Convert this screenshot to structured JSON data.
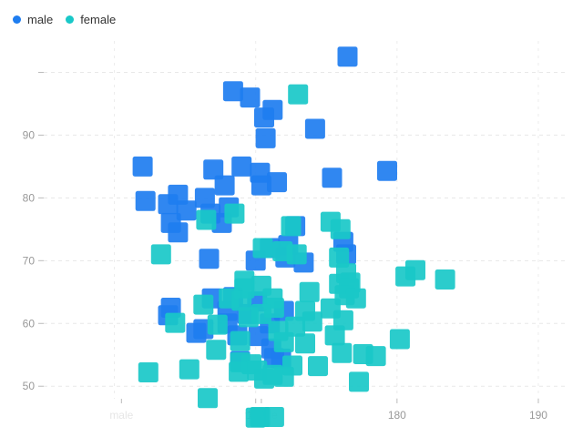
{
  "chart_data": {
    "type": "scatter",
    "title": "",
    "xlabel": "",
    "ylabel": "",
    "x_ticks": [
      170,
      180,
      190
    ],
    "x_ghost_labels": [
      "male",
      "female"
    ],
    "y_ticks": [
      50,
      60,
      70,
      80,
      90
    ],
    "xlim": [
      155,
      192
    ],
    "ylim": [
      48,
      105
    ],
    "grid": true,
    "legend_position": "top-left",
    "series": [
      {
        "name": "male",
        "color": "#1e7df0",
        "points": [
          [
            176.5,
            102.5
          ],
          [
            168.4,
            97
          ],
          [
            169.6,
            96
          ],
          [
            171.2,
            94
          ],
          [
            170.6,
            92.8
          ],
          [
            174.2,
            91
          ],
          [
            170.7,
            89.5
          ],
          [
            162.0,
            85
          ],
          [
            167.0,
            84.5
          ],
          [
            169.0,
            85
          ],
          [
            170.3,
            84
          ],
          [
            175.4,
            83.2
          ],
          [
            179.3,
            84.3
          ],
          [
            171.5,
            82.5
          ],
          [
            170.4,
            82
          ],
          [
            167.8,
            82
          ],
          [
            164.5,
            80.5
          ],
          [
            166.4,
            80
          ],
          [
            162.2,
            79.5
          ],
          [
            163.8,
            79
          ],
          [
            165.1,
            78
          ],
          [
            168.1,
            78.5
          ],
          [
            166.8,
            77.5
          ],
          [
            167.6,
            76
          ],
          [
            164.0,
            76
          ],
          [
            164.5,
            74.5
          ],
          [
            172.8,
            75.5
          ],
          [
            176.2,
            73
          ],
          [
            172.3,
            72.5
          ],
          [
            170.0,
            70
          ],
          [
            172.1,
            70.5
          ],
          [
            171.0,
            72
          ],
          [
            166.7,
            70.3
          ],
          [
            176.4,
            71
          ],
          [
            173.4,
            69.7
          ],
          [
            166.9,
            64
          ],
          [
            168.4,
            64.2
          ],
          [
            170.1,
            63.5
          ],
          [
            168.0,
            62
          ],
          [
            169.4,
            61.5
          ],
          [
            172.0,
            62
          ],
          [
            164.0,
            62.5
          ],
          [
            163.8,
            61.3
          ],
          [
            171.0,
            60
          ],
          [
            168.0,
            60
          ],
          [
            170.2,
            58
          ],
          [
            165.8,
            58.5
          ],
          [
            171.1,
            56
          ],
          [
            171.3,
            54.5
          ],
          [
            168.9,
            54
          ],
          [
            171.8,
            54.4
          ],
          [
            166.3,
            59.1
          ],
          [
            168.7,
            58.1
          ]
        ]
      },
      {
        "name": "female",
        "color": "#19c8c8",
        "points": [
          [
            173.0,
            96.5
          ],
          [
            166.5,
            76.5
          ],
          [
            168.5,
            77.5
          ],
          [
            172.5,
            75.5
          ],
          [
            175.3,
            76.2
          ],
          [
            176.0,
            75
          ],
          [
            163.3,
            71
          ],
          [
            170.5,
            72
          ],
          [
            172.9,
            71
          ],
          [
            171.9,
            71.5
          ],
          [
            175.9,
            70.5
          ],
          [
            176.4,
            68
          ],
          [
            181.3,
            68.5
          ],
          [
            183.4,
            67
          ],
          [
            180.6,
            67.5
          ],
          [
            176.7,
            66.5
          ],
          [
            175.9,
            66.3
          ],
          [
            176.6,
            65.6
          ],
          [
            170.4,
            66
          ],
          [
            169.2,
            66.8
          ],
          [
            173.8,
            65
          ],
          [
            169.2,
            65.6
          ],
          [
            176.3,
            64.5
          ],
          [
            177.1,
            64
          ],
          [
            168.1,
            64
          ],
          [
            171.2,
            64
          ],
          [
            166.3,
            63
          ],
          [
            171.3,
            62.5
          ],
          [
            173.5,
            62
          ],
          [
            175.3,
            62.4
          ],
          [
            169.0,
            63.6
          ],
          [
            170.4,
            61.5
          ],
          [
            169.5,
            61
          ],
          [
            176.2,
            60.5
          ],
          [
            174.0,
            60.3
          ],
          [
            172.8,
            59.5
          ],
          [
            167.3,
            59.8
          ],
          [
            171.6,
            58.8
          ],
          [
            175.6,
            58.1
          ],
          [
            168.9,
            57.2
          ],
          [
            180.2,
            57.5
          ],
          [
            172.0,
            57
          ],
          [
            173.5,
            56.8
          ],
          [
            176.1,
            55.3
          ],
          [
            177.6,
            55.1
          ],
          [
            178.5,
            54.8
          ],
          [
            167.2,
            55.8
          ],
          [
            165.3,
            52.7
          ],
          [
            168.9,
            53.8
          ],
          [
            169.7,
            53.5
          ],
          [
            172.6,
            53.3
          ],
          [
            174.4,
            53.2
          ],
          [
            168.8,
            52.3
          ],
          [
            170.1,
            52.5
          ],
          [
            172.0,
            51.5
          ],
          [
            171.2,
            51.8
          ],
          [
            170.6,
            51.2
          ],
          [
            177.3,
            50.7
          ],
          [
            162.4,
            52.2
          ],
          [
            166.6,
            48.1
          ],
          [
            170.3,
            45.1
          ],
          [
            171.3,
            45.1
          ],
          [
            170.0,
            45.0
          ],
          [
            164.3,
            60.1
          ]
        ]
      }
    ]
  }
}
